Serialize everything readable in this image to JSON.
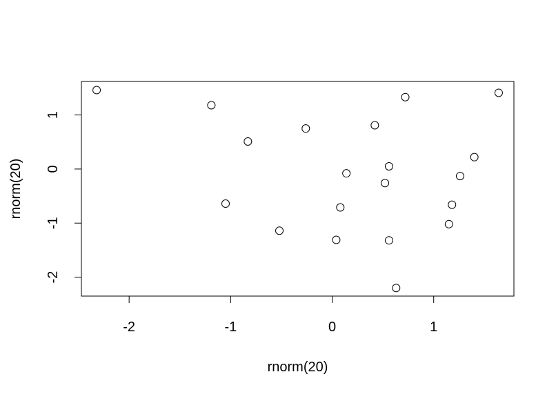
{
  "chart_data": {
    "type": "scatter",
    "title": "",
    "xlabel": "rnorm(20)",
    "ylabel": "rnorm(20)",
    "xlim": [
      -2.47,
      1.79
    ],
    "ylim": [
      -2.35,
      1.62
    ],
    "x_ticks": [
      -2,
      -1,
      0,
      1
    ],
    "x_tick_labels": [
      "-2",
      "-1",
      "0",
      "1"
    ],
    "y_ticks": [
      -2,
      -1,
      0,
      1
    ],
    "y_tick_labels": [
      "-2",
      "-1",
      "0",
      "1"
    ],
    "grid": false,
    "legend": "none",
    "marker": "open-circle",
    "colors": {
      "points": "#000000",
      "axes": "#000000",
      "background": "#ffffff"
    },
    "points": [
      {
        "x": -2.32,
        "y": 1.46
      },
      {
        "x": -1.19,
        "y": 1.18
      },
      {
        "x": -0.83,
        "y": 0.51
      },
      {
        "x": -1.05,
        "y": -0.64
      },
      {
        "x": -0.26,
        "y": 0.75
      },
      {
        "x": -0.52,
        "y": -1.14
      },
      {
        "x": 0.14,
        "y": -0.08
      },
      {
        "x": 0.08,
        "y": -0.71
      },
      {
        "x": 0.04,
        "y": -1.31
      },
      {
        "x": 0.42,
        "y": 0.81
      },
      {
        "x": 0.56,
        "y": 0.05
      },
      {
        "x": 0.52,
        "y": -0.26
      },
      {
        "x": 0.56,
        "y": -1.32
      },
      {
        "x": 0.72,
        "y": 1.33
      },
      {
        "x": 0.63,
        "y": -2.2
      },
      {
        "x": 1.18,
        "y": -0.66
      },
      {
        "x": 1.15,
        "y": -1.02
      },
      {
        "x": 1.26,
        "y": -0.13
      },
      {
        "x": 1.4,
        "y": 0.22
      },
      {
        "x": 1.64,
        "y": 1.41
      }
    ]
  }
}
